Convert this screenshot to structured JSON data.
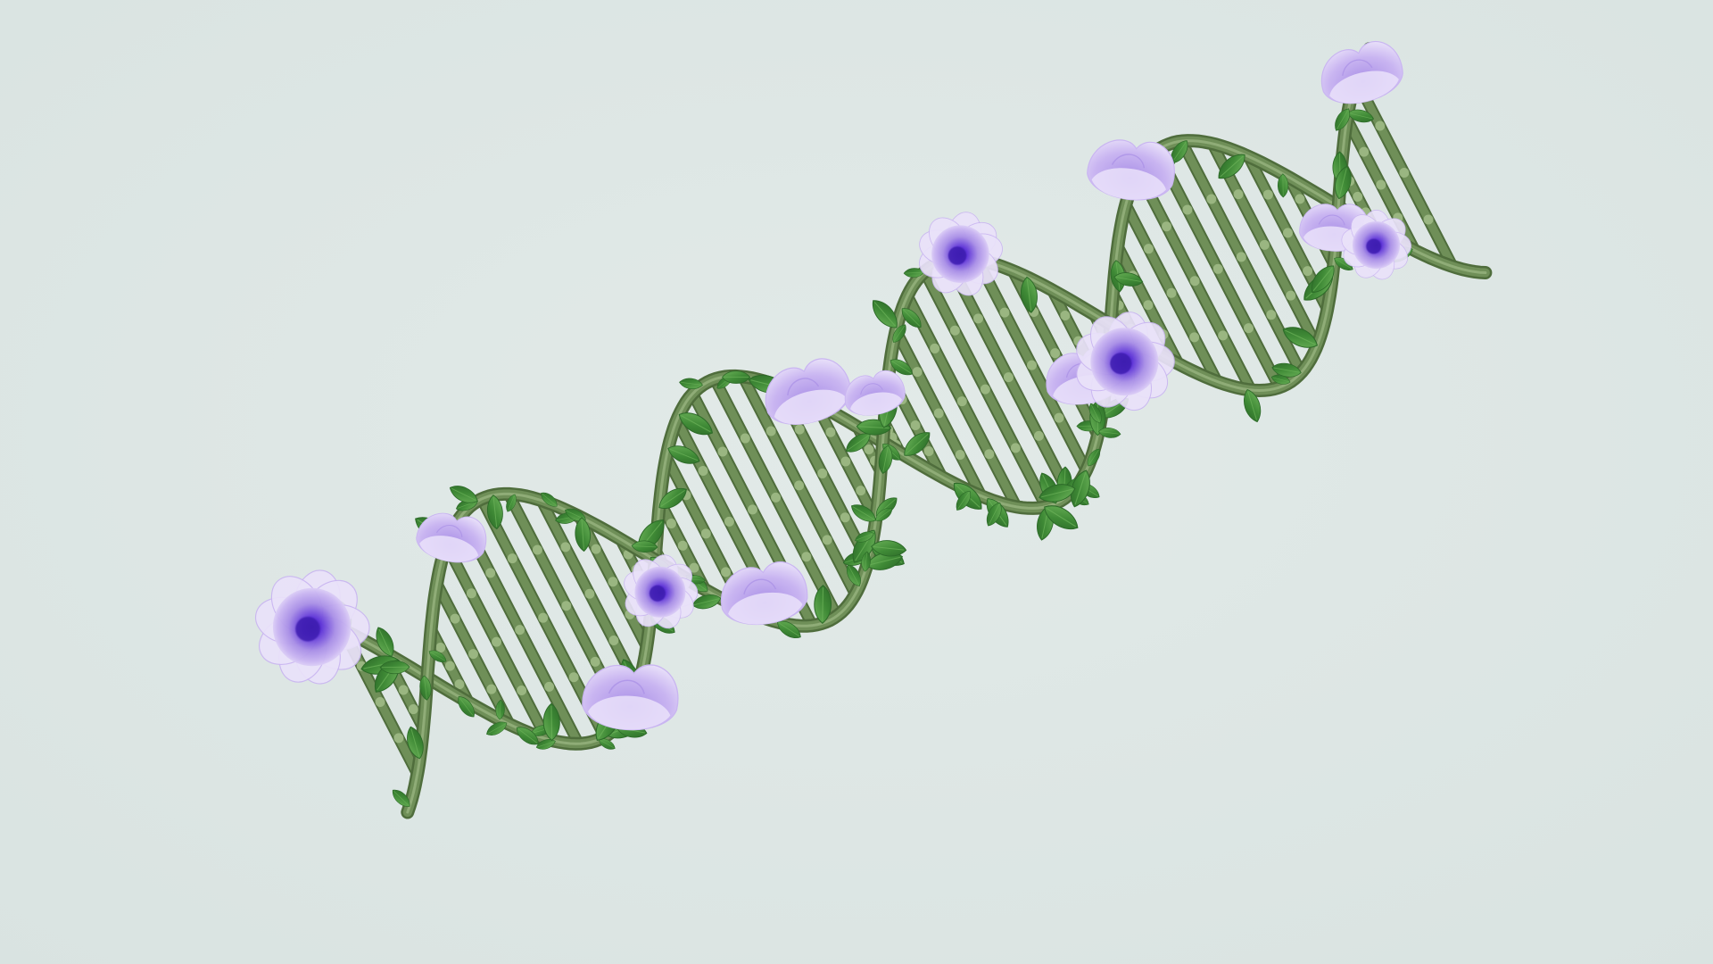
{
  "scene": {
    "subject": "dna-double-helix-with-vines-and-flowers",
    "colors": {
      "background": "#d9e3e1",
      "background_light": "#e2eae8",
      "stem": "#6f8f58",
      "stem_dark": "#4f6d3c",
      "stem_light": "#a5bf8c",
      "leaf": "#3f8a36",
      "leaf_dark": "#2c6a28",
      "leaf_light": "#6db35a",
      "petal": "#eae2fa",
      "petal_mid": "#c9b5f1",
      "petal_shade": "#a88ee6",
      "flower_center": "#5a2fd6",
      "flower_center_deep": "#3c1bb0"
    },
    "icons": [
      "dna-helix-icon",
      "flower-icon",
      "leaf-icon"
    ]
  }
}
